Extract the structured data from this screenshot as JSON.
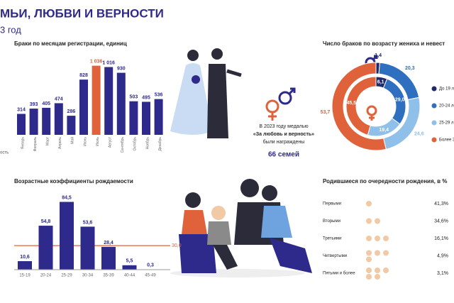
{
  "header": {
    "title": "МЬИ, ЛЮБВИ И ВЕРНОСТИ",
    "subtitle": "3 год",
    "left_fragment": "ость"
  },
  "medal": {
    "text_lines": [
      "В 2023 году медалью",
      "«За любовь и верность»",
      "были награждены"
    ],
    "count": "66 семей"
  },
  "chart_data": [
    {
      "type": "bar",
      "title": "Браки по месяцам регистрации, единиц",
      "categories": [
        "Январь",
        "Февраль",
        "Март",
        "Апрель",
        "Май",
        "Июнь",
        "Июль",
        "Август",
        "Сентябрь",
        "Октябрь",
        "Ноябрь",
        "Декабрь"
      ],
      "values": [
        314,
        393,
        405,
        474,
        286,
        828,
        1036,
        1016,
        930,
        503,
        495,
        536
      ],
      "value_labels": [
        "314",
        "393",
        "405",
        "474",
        "286",
        "828",
        "1 036",
        "1 016",
        "930",
        "503",
        "495",
        "536"
      ],
      "colors": [
        "#2e2a8c",
        "#2e2a8c",
        "#2e2a8c",
        "#2e2a8c",
        "#2e2a8c",
        "#2e2a8c",
        "#e0623a",
        "#2e2a8c",
        "#2e2a8c",
        "#2e2a8c",
        "#2e2a8c",
        "#2e2a8c"
      ]
    },
    {
      "type": "donut",
      "title": "Число браков по возрасту жениха и невест",
      "categories": [
        "До 19 л",
        "20-24 ле",
        "25-29 л",
        "Более 3"
      ],
      "colors": [
        "#1f2a6b",
        "#2f6fbf",
        "#8fc0ea",
        "#e0623a"
      ],
      "rings": [
        {
          "values": [
            1.4,
            20.3,
            24.6,
            53.7
          ],
          "value_labels": [
            "1,4",
            "20,3",
            "24,6",
            "53,7"
          ]
        },
        {
          "values": [
            6.1,
            29.0,
            19.4,
            45.5
          ],
          "value_labels": [
            "6,1",
            "29,0",
            "19,4",
            "45,5"
          ]
        }
      ]
    },
    {
      "type": "bar",
      "title": "Возрастные коэффициенты рождаемости",
      "categories": [
        "15-19",
        "20-24",
        "25-29",
        "30-34",
        "35-39",
        "40-44",
        "45-49"
      ],
      "values": [
        10.6,
        54.8,
        84.5,
        53.6,
        28.4,
        5.5,
        0.3
      ],
      "value_labels": [
        "10,6",
        "54,8",
        "84,5",
        "53,6",
        "28,4",
        "5,5",
        "0,3"
      ],
      "color": "#2e2a8c",
      "reference_line": {
        "value": 30,
        "label": "30,0",
        "color": "#e0623a"
      }
    },
    {
      "type": "pictogram",
      "title": "Родившиеся по очередности рождения, в %",
      "categories": [
        "Первыми",
        "Вторыми",
        "Третьими",
        "Четвертыми",
        "Пятыми и более"
      ],
      "values": [
        41.3,
        34.6,
        16.1,
        4.9,
        3.1
      ],
      "value_labels": [
        "41,3%",
        "34,6%",
        "16,1%",
        "4,9%",
        "3,1%"
      ],
      "color": "#f1c9a5"
    }
  ]
}
